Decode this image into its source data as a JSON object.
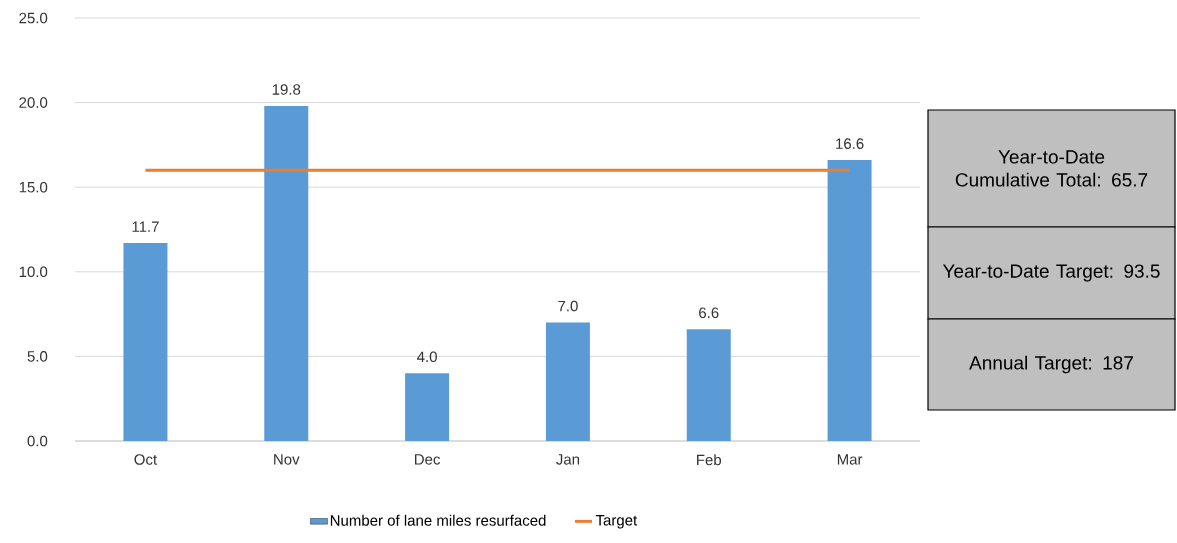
{
  "chart_data": {
    "type": "bar",
    "categories": [
      "Oct",
      "Nov",
      "Dec",
      "Jan",
      "Feb",
      "Mar"
    ],
    "series": [
      {
        "name": "Number of lane miles resurfaced",
        "color": "#5b9bd5",
        "values": [
          11.7,
          19.8,
          4.0,
          7.0,
          6.6,
          16.6
        ],
        "value_labels": [
          "11.7",
          "19.8",
          "4.0",
          "7.0",
          "6.6",
          "16.6"
        ]
      },
      {
        "name": "Target",
        "type": "line",
        "color": "#ed7d31",
        "values": [
          16.0,
          16.0,
          16.0,
          16.0,
          16.0,
          16.0
        ]
      }
    ],
    "ylim": [
      0,
      25
    ],
    "yticks": [
      {
        "value": 0,
        "label": "0.0"
      },
      {
        "value": 5,
        "label": "5.0"
      },
      {
        "value": 10,
        "label": "10.0"
      },
      {
        "value": 15,
        "label": "15.0"
      },
      {
        "value": 20,
        "label": "20.0"
      },
      {
        "value": 25,
        "label": "25.0"
      }
    ],
    "grid": "y",
    "legend": "bottom",
    "marker": "none",
    "line_style": "solid",
    "annotations": [
      "Year-to-Date Cumulative Total: 65.7",
      "Year-to-Date Target:  93.5",
      "Annual Target: 187"
    ]
  }
}
